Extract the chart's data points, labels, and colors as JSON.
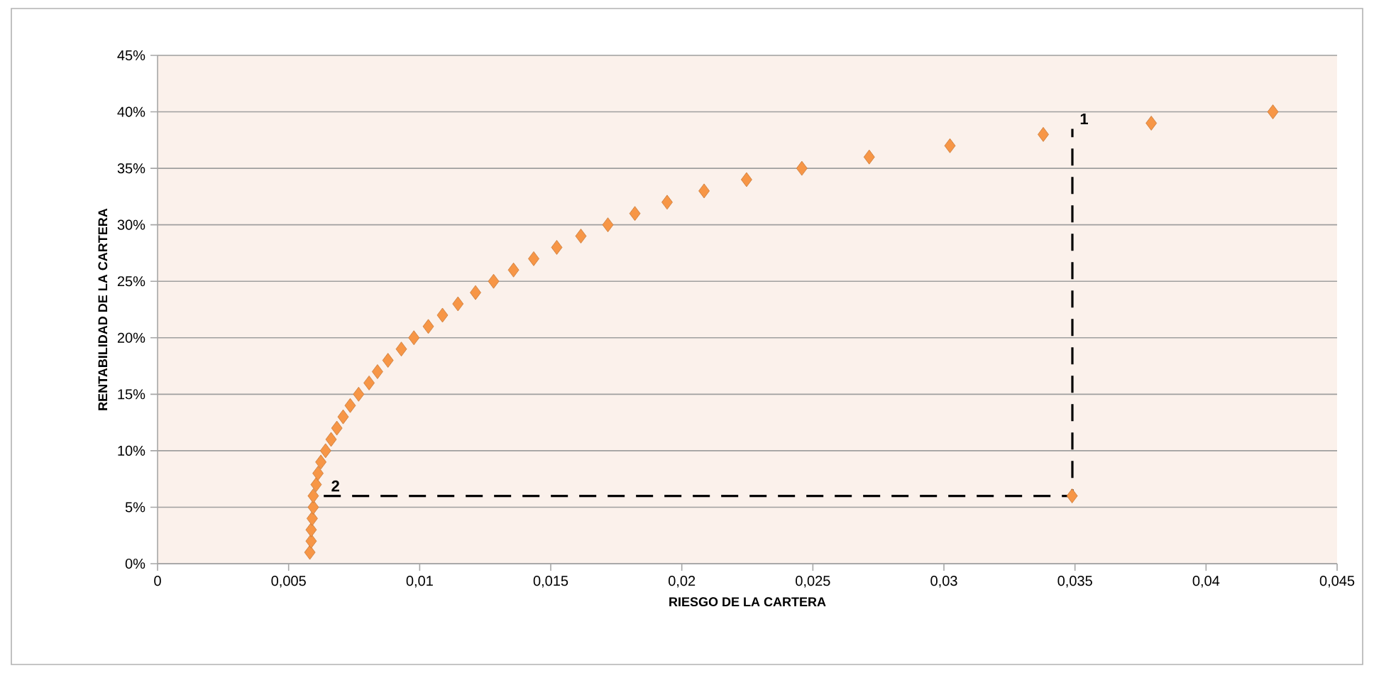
{
  "chart_data": {
    "type": "scatter",
    "xlabel": "RIESGO DE LA CARTERA",
    "ylabel": "RENTABILIDAD DE LA CARTERA",
    "xlim": [
      0,
      0.045
    ],
    "ylim": [
      0,
      45
    ],
    "xticks": [
      0,
      {
        "value": 0.005,
        "label": "0,005"
      },
      {
        "value": 0.01,
        "label": "0,01"
      },
      {
        "value": 0.015,
        "label": "0,015"
      },
      {
        "value": 0.02,
        "label": "0,02"
      },
      {
        "value": 0.025,
        "label": "0,025"
      },
      {
        "value": 0.03,
        "label": "0,03"
      },
      {
        "value": 0.035,
        "label": "0,035"
      },
      {
        "value": 0.04,
        "label": "0,04"
      },
      {
        "value": 0.045,
        "label": "0,045"
      }
    ],
    "yticks": [
      {
        "value": 0,
        "label": "0%"
      },
      {
        "value": 5,
        "label": "5%"
      },
      {
        "value": 10,
        "label": "10%"
      },
      {
        "value": 15,
        "label": "15%"
      },
      {
        "value": 20,
        "label": "20%"
      },
      {
        "value": 25,
        "label": "25%"
      },
      {
        "value": 30,
        "label": "30%"
      },
      {
        "value": 35,
        "label": "35%"
      },
      {
        "value": 40,
        "label": "40%"
      },
      {
        "value": 45,
        "label": "45%"
      }
    ],
    "grid": "y",
    "series": [
      {
        "marker": "diamond",
        "color": "#f79646",
        "x": [
          0.00581,
          0.00586,
          0.00586,
          0.0059,
          0.00594,
          0.00594,
          0.00605,
          0.00612,
          0.00623,
          0.00641,
          0.00662,
          0.00684,
          0.00708,
          0.00735,
          0.00767,
          0.00807,
          0.00839,
          0.00879,
          0.0093,
          0.00978,
          0.01033,
          0.01087,
          0.01146,
          0.01213,
          0.01282,
          0.01358,
          0.01435,
          0.01523,
          0.01615,
          0.01718,
          0.01821,
          0.01944,
          0.02085,
          0.02247,
          0.02458,
          0.02715,
          0.03023,
          0.03379,
          0.03791,
          0.04255,
          0.03489
        ],
        "values": [
          1,
          2,
          3,
          4,
          5,
          6,
          7,
          8,
          9,
          10,
          11,
          12,
          13,
          14,
          15,
          16,
          17,
          18,
          19,
          20,
          21,
          22,
          23,
          24,
          25,
          26,
          27,
          28,
          29,
          30,
          31,
          32,
          33,
          34,
          35,
          36,
          37,
          38,
          39,
          40,
          6
        ]
      },
      {
        "type": "line",
        "marker": "none",
        "line_style": "dashed",
        "color": "#000000",
        "x": [
          0.00634,
          0.0349,
          0.0349
        ],
        "values": [
          6,
          6,
          38.5
        ]
      }
    ],
    "annotations": [
      {
        "text": "1",
        "x": 0.0349,
        "y": 38.5
      },
      {
        "text": "2",
        "x": 0.00634,
        "y": 6
      }
    ]
  }
}
